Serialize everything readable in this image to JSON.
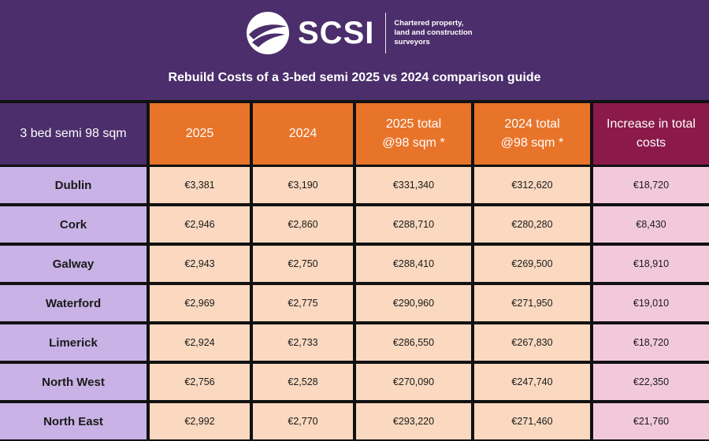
{
  "brand": {
    "logo_name": "SCSI",
    "tagline": [
      "Chartered property,",
      "land and construction",
      "surveyors"
    ],
    "colors": {
      "purple": "#4b2e6b",
      "orange": "#e8742a",
      "magenta": "#8b1a4a"
    }
  },
  "title": "Rebuild Costs of a 3-bed semi 2025 vs 2024 comparison guide",
  "table": {
    "headers": [
      [
        "3 bed semi 98 sqm"
      ],
      [
        "2025"
      ],
      [
        "2024"
      ],
      [
        "2025 total",
        "@98 sqm *"
      ],
      [
        "2024 total",
        "@98 sqm *"
      ],
      [
        "Increase in total",
        "costs"
      ]
    ],
    "rows": [
      {
        "region": "Dublin",
        "c2025": "€3,381",
        "c2024": "€3,190",
        "t2025": "€331,340",
        "t2024": "€312,620",
        "increase": "€18,720"
      },
      {
        "region": "Cork",
        "c2025": "€2,946",
        "c2024": "€2,860",
        "t2025": "€288,710",
        "t2024": "€280,280",
        "increase": "€8,430"
      },
      {
        "region": "Galway",
        "c2025": "€2,943",
        "c2024": "€2,750",
        "t2025": "€288,410",
        "t2024": "€269,500",
        "increase": "€18,910"
      },
      {
        "region": "Waterford",
        "c2025": "€2,969",
        "c2024": "€2,775",
        "t2025": "€290,960",
        "t2024": "€271,950",
        "increase": "€19,010"
      },
      {
        "region": "Limerick",
        "c2025": "€2,924",
        "c2024": "€2,733",
        "t2025": "€286,550",
        "t2024": "€267,830",
        "increase": "€18,720"
      },
      {
        "region": "North West",
        "c2025": "€2,756",
        "c2024": "€2,528",
        "t2025": "€270,090",
        "t2024": "€247,740",
        "increase": "€22,350"
      },
      {
        "region": "North East",
        "c2025": "€2,992",
        "c2024": "€2,770",
        "t2025": "€293,220",
        "t2024": "€271,460",
        "increase": "€21,760"
      }
    ]
  }
}
